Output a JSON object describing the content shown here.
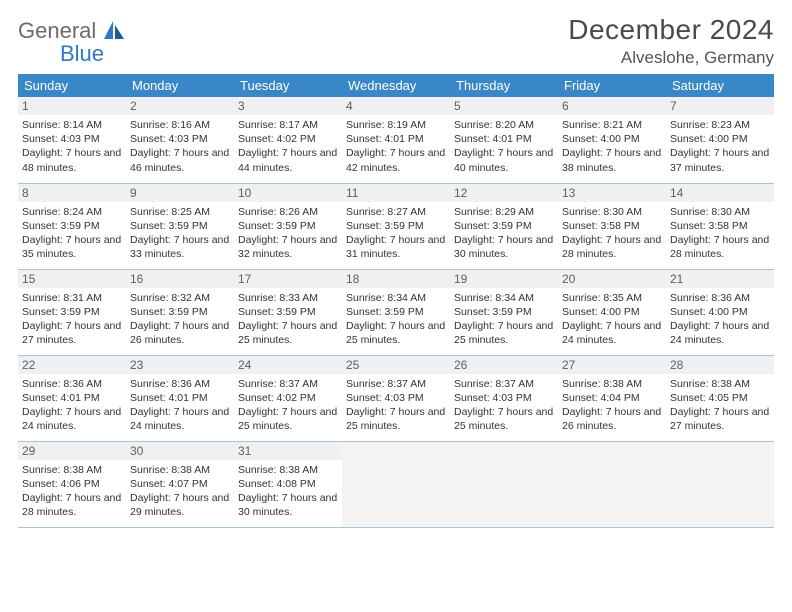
{
  "brand": {
    "word1": "General",
    "word2": "Blue"
  },
  "title": "December 2024",
  "location": "Alveslohe, Germany",
  "colors": {
    "header_bg": "#3a87c7",
    "header_text": "#ffffff",
    "daynum_bg": "#eef0f2",
    "cell_border": "#a9c3dc",
    "body_text": "#333333",
    "title_text": "#4a4a4a",
    "empty_bg": "#f3f3f3",
    "logo_gray": "#6b6b6b",
    "logo_blue": "#2f78c4"
  },
  "typography": {
    "title_fontsize": 28,
    "location_fontsize": 17,
    "dayheader_fontsize": 13,
    "daynum_fontsize": 12,
    "body_fontsize": 10.5
  },
  "day_headers": [
    "Sunday",
    "Monday",
    "Tuesday",
    "Wednesday",
    "Thursday",
    "Friday",
    "Saturday"
  ],
  "weeks": [
    [
      {
        "n": "1",
        "sr": "Sunrise: 8:14 AM",
        "ss": "Sunset: 4:03 PM",
        "dl": "Daylight: 7 hours and 48 minutes."
      },
      {
        "n": "2",
        "sr": "Sunrise: 8:16 AM",
        "ss": "Sunset: 4:03 PM",
        "dl": "Daylight: 7 hours and 46 minutes."
      },
      {
        "n": "3",
        "sr": "Sunrise: 8:17 AM",
        "ss": "Sunset: 4:02 PM",
        "dl": "Daylight: 7 hours and 44 minutes."
      },
      {
        "n": "4",
        "sr": "Sunrise: 8:19 AM",
        "ss": "Sunset: 4:01 PM",
        "dl": "Daylight: 7 hours and 42 minutes."
      },
      {
        "n": "5",
        "sr": "Sunrise: 8:20 AM",
        "ss": "Sunset: 4:01 PM",
        "dl": "Daylight: 7 hours and 40 minutes."
      },
      {
        "n": "6",
        "sr": "Sunrise: 8:21 AM",
        "ss": "Sunset: 4:00 PM",
        "dl": "Daylight: 7 hours and 38 minutes."
      },
      {
        "n": "7",
        "sr": "Sunrise: 8:23 AM",
        "ss": "Sunset: 4:00 PM",
        "dl": "Daylight: 7 hours and 37 minutes."
      }
    ],
    [
      {
        "n": "8",
        "sr": "Sunrise: 8:24 AM",
        "ss": "Sunset: 3:59 PM",
        "dl": "Daylight: 7 hours and 35 minutes."
      },
      {
        "n": "9",
        "sr": "Sunrise: 8:25 AM",
        "ss": "Sunset: 3:59 PM",
        "dl": "Daylight: 7 hours and 33 minutes."
      },
      {
        "n": "10",
        "sr": "Sunrise: 8:26 AM",
        "ss": "Sunset: 3:59 PM",
        "dl": "Daylight: 7 hours and 32 minutes."
      },
      {
        "n": "11",
        "sr": "Sunrise: 8:27 AM",
        "ss": "Sunset: 3:59 PM",
        "dl": "Daylight: 7 hours and 31 minutes."
      },
      {
        "n": "12",
        "sr": "Sunrise: 8:29 AM",
        "ss": "Sunset: 3:59 PM",
        "dl": "Daylight: 7 hours and 30 minutes."
      },
      {
        "n": "13",
        "sr": "Sunrise: 8:30 AM",
        "ss": "Sunset: 3:58 PM",
        "dl": "Daylight: 7 hours and 28 minutes."
      },
      {
        "n": "14",
        "sr": "Sunrise: 8:30 AM",
        "ss": "Sunset: 3:58 PM",
        "dl": "Daylight: 7 hours and 28 minutes."
      }
    ],
    [
      {
        "n": "15",
        "sr": "Sunrise: 8:31 AM",
        "ss": "Sunset: 3:59 PM",
        "dl": "Daylight: 7 hours and 27 minutes."
      },
      {
        "n": "16",
        "sr": "Sunrise: 8:32 AM",
        "ss": "Sunset: 3:59 PM",
        "dl": "Daylight: 7 hours and 26 minutes."
      },
      {
        "n": "17",
        "sr": "Sunrise: 8:33 AM",
        "ss": "Sunset: 3:59 PM",
        "dl": "Daylight: 7 hours and 25 minutes."
      },
      {
        "n": "18",
        "sr": "Sunrise: 8:34 AM",
        "ss": "Sunset: 3:59 PM",
        "dl": "Daylight: 7 hours and 25 minutes."
      },
      {
        "n": "19",
        "sr": "Sunrise: 8:34 AM",
        "ss": "Sunset: 3:59 PM",
        "dl": "Daylight: 7 hours and 25 minutes."
      },
      {
        "n": "20",
        "sr": "Sunrise: 8:35 AM",
        "ss": "Sunset: 4:00 PM",
        "dl": "Daylight: 7 hours and 24 minutes."
      },
      {
        "n": "21",
        "sr": "Sunrise: 8:36 AM",
        "ss": "Sunset: 4:00 PM",
        "dl": "Daylight: 7 hours and 24 minutes."
      }
    ],
    [
      {
        "n": "22",
        "sr": "Sunrise: 8:36 AM",
        "ss": "Sunset: 4:01 PM",
        "dl": "Daylight: 7 hours and 24 minutes."
      },
      {
        "n": "23",
        "sr": "Sunrise: 8:36 AM",
        "ss": "Sunset: 4:01 PM",
        "dl": "Daylight: 7 hours and 24 minutes."
      },
      {
        "n": "24",
        "sr": "Sunrise: 8:37 AM",
        "ss": "Sunset: 4:02 PM",
        "dl": "Daylight: 7 hours and 25 minutes."
      },
      {
        "n": "25",
        "sr": "Sunrise: 8:37 AM",
        "ss": "Sunset: 4:03 PM",
        "dl": "Daylight: 7 hours and 25 minutes."
      },
      {
        "n": "26",
        "sr": "Sunrise: 8:37 AM",
        "ss": "Sunset: 4:03 PM",
        "dl": "Daylight: 7 hours and 25 minutes."
      },
      {
        "n": "27",
        "sr": "Sunrise: 8:38 AM",
        "ss": "Sunset: 4:04 PM",
        "dl": "Daylight: 7 hours and 26 minutes."
      },
      {
        "n": "28",
        "sr": "Sunrise: 8:38 AM",
        "ss": "Sunset: 4:05 PM",
        "dl": "Daylight: 7 hours and 27 minutes."
      }
    ],
    [
      {
        "n": "29",
        "sr": "Sunrise: 8:38 AM",
        "ss": "Sunset: 4:06 PM",
        "dl": "Daylight: 7 hours and 28 minutes."
      },
      {
        "n": "30",
        "sr": "Sunrise: 8:38 AM",
        "ss": "Sunset: 4:07 PM",
        "dl": "Daylight: 7 hours and 29 minutes."
      },
      {
        "n": "31",
        "sr": "Sunrise: 8:38 AM",
        "ss": "Sunset: 4:08 PM",
        "dl": "Daylight: 7 hours and 30 minutes."
      },
      null,
      null,
      null,
      null
    ]
  ]
}
